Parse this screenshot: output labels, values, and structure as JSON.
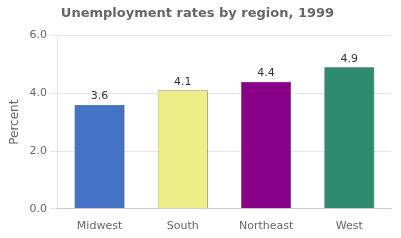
{
  "chart_data": {
    "type": "bar",
    "title": "Unemployment rates by region, 1999",
    "categories": [
      "Midwest",
      "South",
      "Northeast",
      "West"
    ],
    "values": [
      3.6,
      4.1,
      4.4,
      4.9
    ],
    "colors": [
      "#4472c4",
      "#eeee88",
      "#880088",
      "#2e8b6e"
    ],
    "ylabel": "Percent",
    "ylim": [
      0.0,
      6.0
    ],
    "yticks": [
      {
        "value": 0.0,
        "label": "0.0"
      },
      {
        "value": 2.0,
        "label": "2.0"
      },
      {
        "value": 4.0,
        "label": "4.0"
      },
      {
        "value": 6.0,
        "label": "6.0"
      }
    ],
    "grid": true,
    "data_labels": true
  }
}
